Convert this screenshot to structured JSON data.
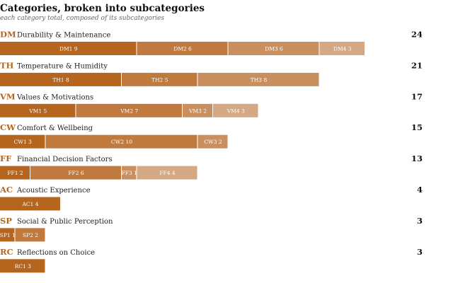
{
  "title": "Categories, broken into subcategories",
  "subtitle": "each category total, composed of its subcategories",
  "chart_data": {
    "type": "bar",
    "orientation": "horizontal",
    "stacked": true,
    "xlim": [
      0,
      28
    ],
    "grid": false,
    "legend": "none",
    "colors": [
      "#b5651d",
      "#c17a3e",
      "#c98f5f",
      "#d3a883"
    ],
    "code_color": "#b5651d",
    "categories": [
      {
        "code": "DM",
        "name": "Durability & Maintenance",
        "total": 24,
        "segments": [
          {
            "label": "DM1",
            "value": 9
          },
          {
            "label": "DM2",
            "value": 6
          },
          {
            "label": "DM3",
            "value": 6
          },
          {
            "label": "DM4",
            "value": 3
          }
        ]
      },
      {
        "code": "TH",
        "name": "Temperature & Humidity",
        "total": 21,
        "segments": [
          {
            "label": "TH1",
            "value": 8
          },
          {
            "label": "TH2",
            "value": 5
          },
          {
            "label": "TH3",
            "value": 8
          }
        ]
      },
      {
        "code": "VM",
        "name": "Values & Motivations",
        "total": 17,
        "segments": [
          {
            "label": "VM1",
            "value": 5
          },
          {
            "label": "VM2",
            "value": 7
          },
          {
            "label": "VM3",
            "value": 2
          },
          {
            "label": "VM4",
            "value": 3
          }
        ]
      },
      {
        "code": "CW",
        "name": "Comfort & Wellbeing",
        "total": 15,
        "segments": [
          {
            "label": "CW1",
            "value": 3
          },
          {
            "label": "CW2",
            "value": 10
          },
          {
            "label": "CW3",
            "value": 2
          }
        ]
      },
      {
        "code": "FF",
        "name": "Financial Decision Factors",
        "total": 13,
        "segments": [
          {
            "label": "FF1",
            "value": 2
          },
          {
            "label": "FF2",
            "value": 6
          },
          {
            "label": "FF3",
            "value": 1
          },
          {
            "label": "FF4",
            "value": 4
          }
        ]
      },
      {
        "code": "AC",
        "name": "Acoustic Experience",
        "total": 4,
        "segments": [
          {
            "label": "AC1",
            "value": 4
          }
        ]
      },
      {
        "code": "SP",
        "name": "Social & Public Perception",
        "total": 3,
        "segments": [
          {
            "label": "SP1",
            "value": 1
          },
          {
            "label": "SP2",
            "value": 2
          }
        ]
      },
      {
        "code": "RC",
        "name": "Reflections on Choice",
        "total": 3,
        "segments": [
          {
            "label": "RC1",
            "value": 3
          }
        ]
      }
    ]
  }
}
